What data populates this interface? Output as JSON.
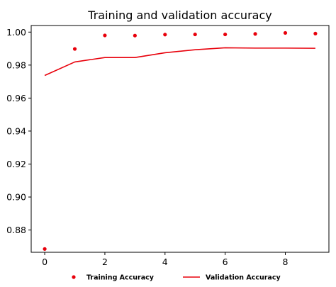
{
  "chart_data": {
    "type": "line",
    "title": "Training and validation accuracy",
    "xlabel": "",
    "ylabel": "",
    "xlim": [
      -0.45,
      9.45
    ],
    "ylim": [
      0.8665,
      1.004
    ],
    "x_ticks": [
      0,
      2,
      4,
      6,
      8
    ],
    "x_tick_labels": [
      "0",
      "2",
      "4",
      "6",
      "8"
    ],
    "y_ticks": [
      0.88,
      0.9,
      0.92,
      0.94,
      0.96,
      0.98,
      1.0
    ],
    "y_tick_labels": [
      "0.88",
      "0.90",
      "0.92",
      "0.94",
      "0.96",
      "0.98",
      "1.00"
    ],
    "grid": false,
    "legend_position": "bottom-center",
    "x": [
      0,
      1,
      2,
      3,
      4,
      5,
      6,
      7,
      8,
      9
    ],
    "series": [
      {
        "name": "Training Accuracy",
        "style": "markers",
        "color": "#e8000b",
        "values": [
          0.8685,
          0.9898,
          0.998,
          0.9979,
          0.9985,
          0.9986,
          0.9986,
          0.9989,
          0.9995,
          0.9991
        ]
      },
      {
        "name": "Validation Accuracy",
        "style": "line",
        "color": "#e8000b",
        "values": [
          0.9737,
          0.9819,
          0.9846,
          0.9846,
          0.9875,
          0.9893,
          0.9905,
          0.9903,
          0.9903,
          0.9902
        ]
      }
    ]
  }
}
